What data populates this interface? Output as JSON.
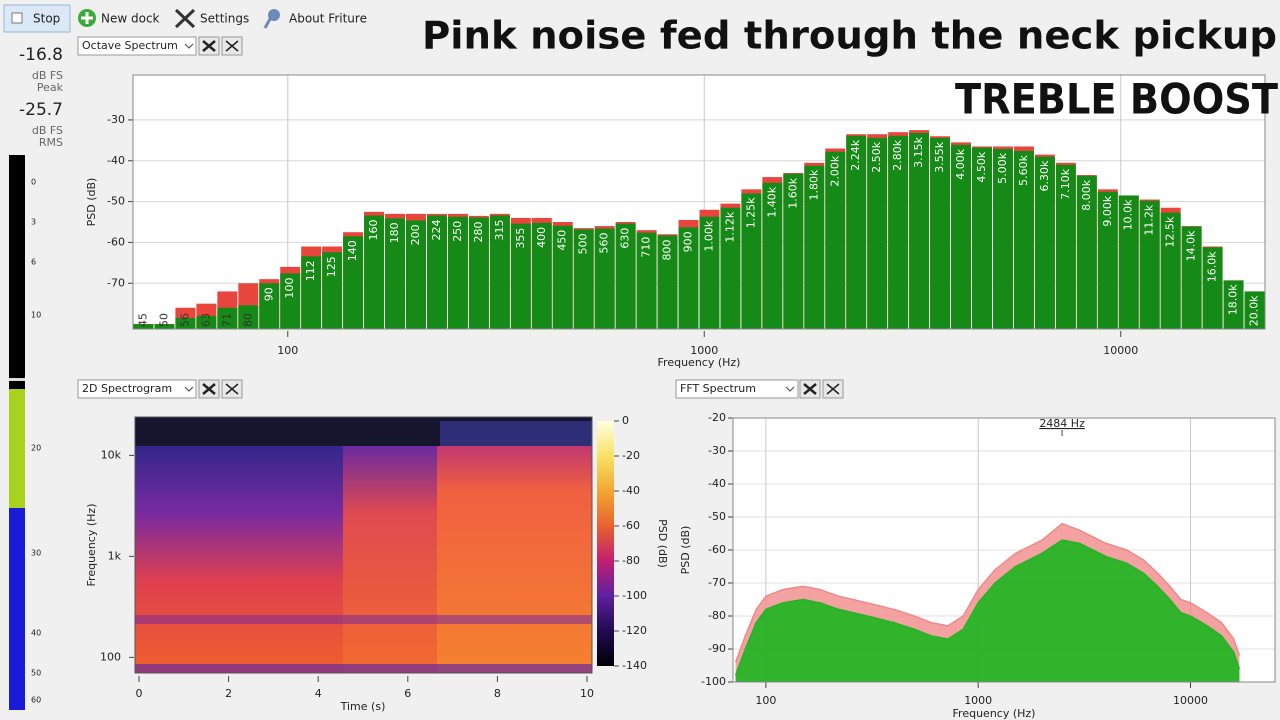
{
  "toolbar": {
    "buttons": [
      "Stop",
      "New dock",
      "Settings",
      "About Friture"
    ]
  },
  "overlay": {
    "title": "Pink noise fed through the neck pickup",
    "subtitle": "TREBLE BOOST"
  },
  "meter": {
    "peak": -16.8,
    "peak_unit": "dB FS",
    "peak_label": "Peak",
    "rms": -25.7,
    "rms_unit": "dB FS",
    "rms_label": "RMS",
    "scale": [
      0,
      3,
      6,
      10,
      20,
      30,
      40,
      50,
      60
    ]
  },
  "chart_data": [
    {
      "type": "bar",
      "panel_title": "Octave Spectrum",
      "xlabel": "Frequency (Hz)",
      "ylabel": "PSD (dB)",
      "xscale": "log",
      "xlim": [
        42.5,
        22200
      ],
      "xticks": [
        100,
        1000,
        10000
      ],
      "ylim": [
        -81.2,
        -19
      ],
      "yticks": [
        -70,
        -60,
        -50,
        -40,
        -30
      ],
      "grid": true,
      "categories": [
        "45",
        "50",
        "56",
        "63",
        "71",
        "80",
        "90",
        "100",
        "112",
        "125",
        "140",
        "160",
        "180",
        "200",
        "224",
        "250",
        "280",
        "315",
        "355",
        "400",
        "450",
        "500",
        "560",
        "630",
        "710",
        "800",
        "900",
        "1.00k",
        "1.12k",
        "1.25k",
        "1.40k",
        "1.60k",
        "1.80k",
        "2.00k",
        "2.24k",
        "2.50k",
        "2.80k",
        "3.15k",
        "3.55k",
        "4.00k",
        "4.50k",
        "5.00k",
        "5.60k",
        "6.30k",
        "7.10k",
        "8.00k",
        "9.00k",
        "10.0k",
        "11.2k",
        "12.5k",
        "14.0k",
        "16.0k",
        "18.0k",
        "20.0k"
      ],
      "series": [
        {
          "color": "#e8453c",
          "values": [
            -80,
            -80,
            -76,
            -75,
            -72,
            -70,
            -69,
            -66,
            -61,
            -61,
            -57.5,
            -52.5,
            -53,
            -53,
            -53,
            -53,
            -53.5,
            -53,
            -54,
            -54,
            -55,
            -56.5,
            -56,
            -55,
            -57,
            -58,
            -54.5,
            -52,
            -50.5,
            -47,
            -44,
            -43,
            -40.5,
            -37,
            -33.5,
            -33.5,
            -33,
            -32.5,
            -34,
            -35.5,
            -36.5,
            -36.5,
            -36.5,
            -38.5,
            -40.5,
            -43.5,
            -47,
            -48.5,
            -49.5,
            -51.5,
            -56,
            -61,
            -69.3,
            -72
          ]
        },
        {
          "color": "#168a16",
          "values": [
            -80,
            -80,
            -78.5,
            -78,
            -76,
            -75.4,
            -70,
            -67.6,
            -63.4,
            -62.4,
            -58.5,
            -53.4,
            -54.1,
            -54.6,
            -53.4,
            -53.7,
            -53.9,
            -53.4,
            -55.4,
            -55.2,
            -55.9,
            -56.8,
            -56.6,
            -55.4,
            -57.6,
            -58.3,
            -56.3,
            -53.7,
            -51.5,
            -48,
            -45.4,
            -43.2,
            -41.2,
            -37.8,
            -33.9,
            -34.4,
            -33.9,
            -33.2,
            -34.4,
            -36.1,
            -36.8,
            -37.1,
            -37.6,
            -39,
            -41,
            -43.7,
            -47.6,
            -48.5,
            -49.8,
            -52.7,
            -56.1,
            -61.2,
            -69.3,
            -72
          ]
        }
      ]
    },
    {
      "type": "spectrogram",
      "panel_title": "2D Spectrogram",
      "xlabel": "Time (s)",
      "ylabel": "Frequency (Hz)",
      "xlim": [
        0,
        10
      ],
      "xticks": [
        0,
        2,
        4,
        6,
        8,
        10
      ],
      "yscale": "log",
      "ylim": [
        70,
        24000
      ],
      "yticks": [
        100,
        {
          "value": 1000,
          "label": "1k"
        },
        {
          "value": 10000,
          "label": "10k"
        }
      ],
      "colorbar": {
        "label": "PSD (dB)",
        "lim": [
          -140,
          0
        ],
        "ticks": [
          0,
          -20,
          -40,
          -60,
          -80,
          -100,
          -120,
          -140
        ]
      }
    },
    {
      "type": "area",
      "panel_title": "FFT Spectrum",
      "xlabel": "Frequency (Hz)",
      "ylabel": "PSD (dB)",
      "xscale": "log",
      "xlim": [
        70,
        25000
      ],
      "xticks": [
        100,
        1000,
        10000
      ],
      "ylim": [
        -100,
        -20
      ],
      "yticks": [
        -20,
        -30,
        -40,
        -50,
        -60,
        -70,
        -80,
        -90,
        -100
      ],
      "grid": true,
      "annotation": "2484 Hz",
      "x": [
        72,
        80,
        90,
        100,
        120,
        150,
        180,
        220,
        300,
        400,
        500,
        600,
        720,
        850,
        1000,
        1200,
        1500,
        2000,
        2484,
        3000,
        4000,
        5000,
        6000,
        7000,
        8000,
        9000,
        10000,
        12000,
        14000,
        16000,
        17000
      ],
      "series": [
        {
          "color": "#f08a8a",
          "values": [
            -94,
            -86,
            -78,
            -74,
            -72,
            -71,
            -72,
            -74,
            -76,
            -78,
            -80,
            -82,
            -83,
            -80,
            -72,
            -66,
            -61,
            -57,
            -52,
            -54,
            -58,
            -60,
            -63,
            -67,
            -71,
            -75,
            -76,
            -79,
            -82,
            -87,
            -92
          ]
        },
        {
          "color": "#26b426",
          "values": [
            -98,
            -90,
            -82,
            -78,
            -76,
            -75,
            -76,
            -78,
            -80,
            -82,
            -84,
            -86,
            -87,
            -84,
            -76,
            -70,
            -65,
            -61,
            -57,
            -58,
            -62,
            -64,
            -67,
            -71,
            -75,
            -79,
            -80,
            -83,
            -86,
            -91,
            -96
          ]
        }
      ]
    }
  ]
}
